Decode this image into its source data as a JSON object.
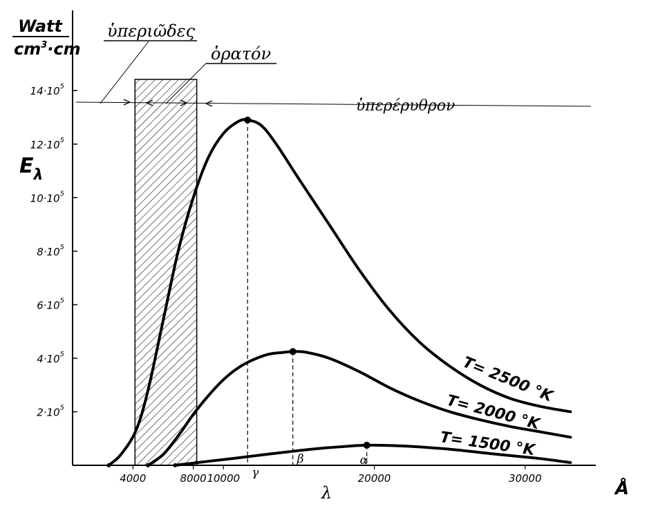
{
  "chart_data": {
    "type": "line",
    "ylabel_unit_num": "Watt",
    "ylabel_unit_den_a": "cm",
    "ylabel_unit_den_exp": "3",
    "ylabel_unit_den_b": "·cm",
    "ylabel": "E",
    "ylabel_sub": "λ",
    "xlabel": "λ",
    "x_unit": "Å",
    "xlim": [
      0,
      34000
    ],
    "ylim": [
      0,
      1500000
    ],
    "x_ticks": [
      {
        "value": 4000,
        "label": "4000"
      },
      {
        "value": 8000,
        "label": "8000"
      },
      {
        "value": 10000,
        "label": "10000"
      },
      {
        "value": 20000,
        "label": "20000"
      },
      {
        "value": 30000,
        "label": "30000"
      }
    ],
    "y_ticks": [
      {
        "value": 200000,
        "base": "2·10",
        "exp": "5"
      },
      {
        "value": 400000,
        "base": "4·10",
        "exp": "5"
      },
      {
        "value": 600000,
        "base": "6·10",
        "exp": "5"
      },
      {
        "value": 800000,
        "base": "8·10",
        "exp": "5"
      },
      {
        "value": 1000000,
        "base": "10·10",
        "exp": "5"
      },
      {
        "value": 1200000,
        "base": "12·10",
        "exp": "5"
      },
      {
        "value": 1400000,
        "base": "14·10",
        "exp": "5"
      }
    ],
    "regions": {
      "uv_label": "ὑπεριῶδες",
      "visible_label": "ὁρατόν",
      "visible_range": [
        4000,
        8000
      ],
      "ir_label": "ὑπερέρυθρον"
    },
    "series": [
      {
        "name": "T = 2500 °K",
        "label_prefix": "T",
        "label_value": "= 2500 °K",
        "peak_marker": "γ",
        "peak": [
          11600,
          1290000
        ],
        "points": [
          [
            2400,
            0
          ],
          [
            3200,
            40000
          ],
          [
            4200,
            130000
          ],
          [
            5000,
            280000
          ],
          [
            6000,
            540000
          ],
          [
            7000,
            800000
          ],
          [
            8000,
            1000000
          ],
          [
            9000,
            1150000
          ],
          [
            10000,
            1240000
          ],
          [
            11000,
            1285000
          ],
          [
            11600,
            1290000
          ],
          [
            12500,
            1270000
          ],
          [
            13500,
            1200000
          ],
          [
            15000,
            1070000
          ],
          [
            17000,
            900000
          ],
          [
            19000,
            730000
          ],
          [
            21000,
            580000
          ],
          [
            23000,
            460000
          ],
          [
            25000,
            370000
          ],
          [
            27000,
            300000
          ],
          [
            29000,
            250000
          ],
          [
            31000,
            220000
          ],
          [
            33000,
            200000
          ]
        ]
      },
      {
        "name": "T = 2000 °K",
        "label_prefix": "T",
        "label_value": "= 2000 °K",
        "peak_marker": "β",
        "peak": [
          14600,
          425000
        ],
        "points": [
          [
            5000,
            0
          ],
          [
            6000,
            40000
          ],
          [
            7000,
            110000
          ],
          [
            8000,
            190000
          ],
          [
            9000,
            260000
          ],
          [
            10000,
            320000
          ],
          [
            11000,
            365000
          ],
          [
            12000,
            395000
          ],
          [
            13000,
            415000
          ],
          [
            14000,
            422000
          ],
          [
            14600,
            425000
          ],
          [
            15500,
            422000
          ],
          [
            17000,
            400000
          ],
          [
            19000,
            350000
          ],
          [
            21000,
            290000
          ],
          [
            23000,
            240000
          ],
          [
            25000,
            200000
          ],
          [
            27000,
            170000
          ],
          [
            29000,
            145000
          ],
          [
            31000,
            125000
          ],
          [
            33000,
            105000
          ]
        ]
      },
      {
        "name": "T = 1500 °K",
        "label_prefix": "T",
        "label_value": "= 1500 °K",
        "peak_marker": "α",
        "peak": [
          19500,
          75000
        ],
        "points": [
          [
            6800,
            0
          ],
          [
            9000,
            15000
          ],
          [
            11000,
            28000
          ],
          [
            13000,
            42000
          ],
          [
            15000,
            55000
          ],
          [
            17000,
            66000
          ],
          [
            19500,
            75000
          ],
          [
            22000,
            72000
          ],
          [
            25000,
            60000
          ],
          [
            28000,
            42000
          ],
          [
            31000,
            25000
          ],
          [
            33000,
            10000
          ]
        ]
      }
    ]
  }
}
